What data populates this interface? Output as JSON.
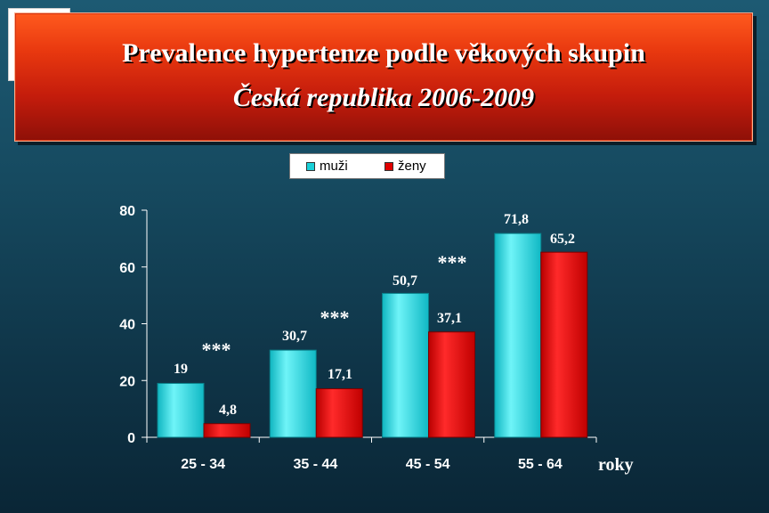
{
  "header": {
    "title": "Prevalence hypertenze podle věkových  skupin",
    "subtitle": "Česká republika 2006-2009"
  },
  "logo": {
    "icon": "heraldic-lion-heart-icon"
  },
  "colors": {
    "muzi": "#19d0d8",
    "zeny": "#e00000",
    "title_bg": "#d8280e"
  },
  "chart_data": {
    "type": "bar",
    "categories": [
      "25 - 34",
      "35 - 44",
      "45 - 54",
      "55 - 64"
    ],
    "series": [
      {
        "name": "muži",
        "values": [
          19,
          30.7,
          50.7,
          71.8
        ],
        "labels": [
          "19",
          "30,7",
          "50,7",
          "71,8"
        ]
      },
      {
        "name": "ženy",
        "values": [
          4.8,
          17.1,
          37.1,
          65.2
        ],
        "labels": [
          "4,8",
          "17,1",
          "37,1",
          "65,2"
        ]
      }
    ],
    "ylim": [
      0,
      80
    ],
    "yticks": [
      0,
      20,
      40,
      60,
      80
    ],
    "xlabel": "roky",
    "ylabel": "",
    "grid": false,
    "legend": "top",
    "annotations": [
      "***",
      "***",
      "***"
    ]
  }
}
